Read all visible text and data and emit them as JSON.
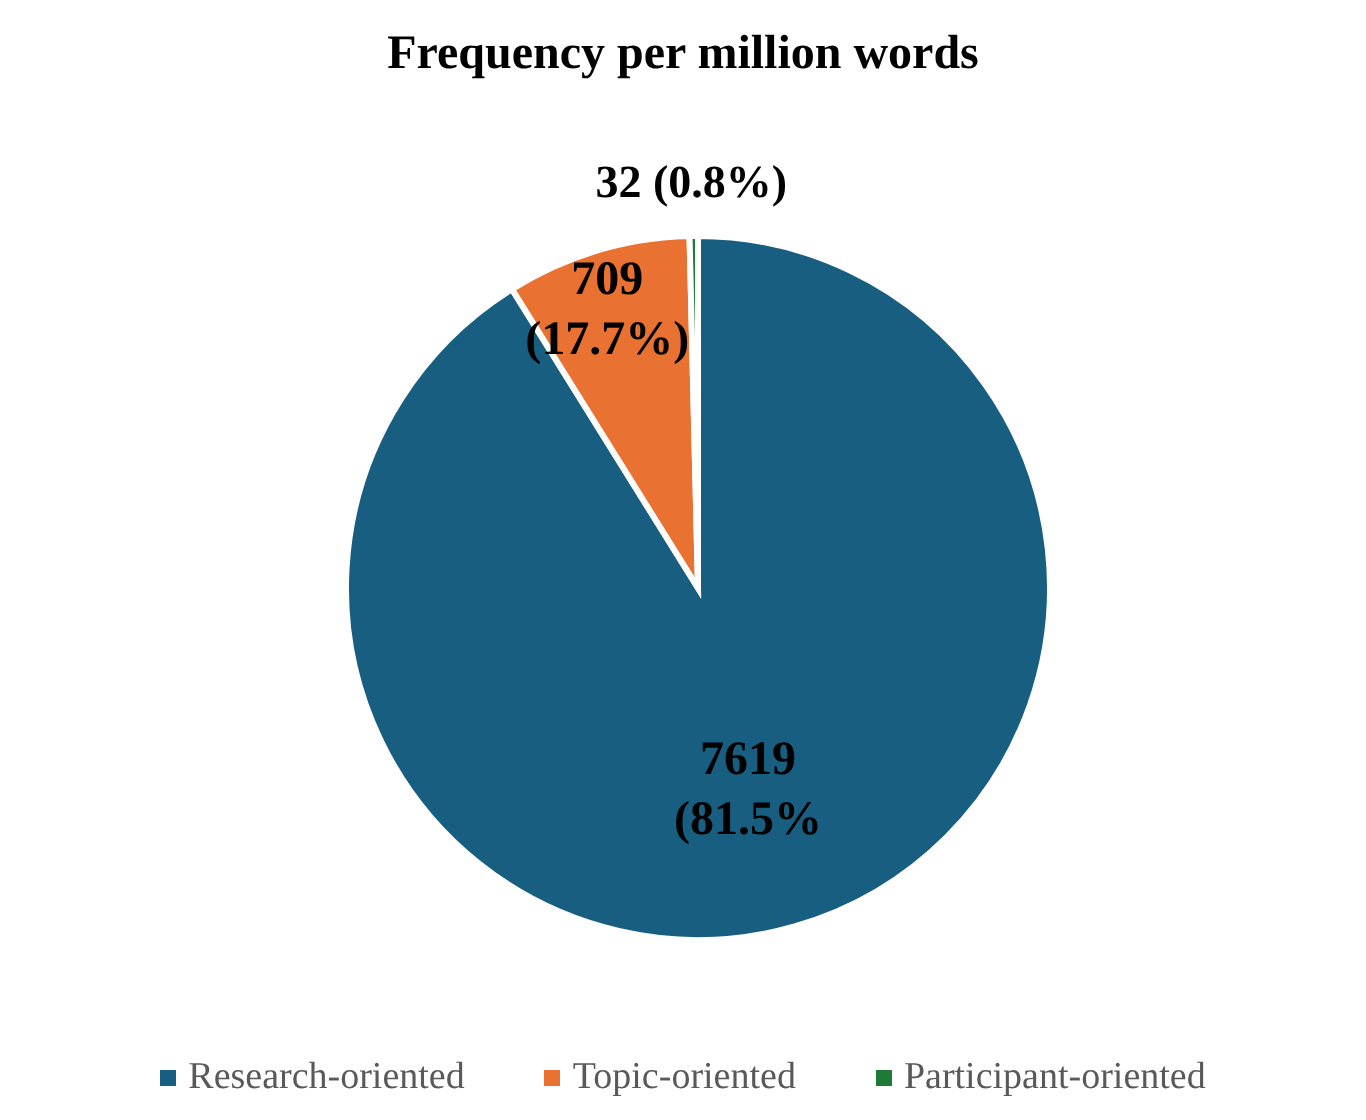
{
  "chart_data": {
    "type": "pie",
    "title": "Frequency per million words",
    "categories": [
      "Research-oriented",
      "Topic-oriented",
      "Participant-oriented"
    ],
    "values": [
      7619,
      709,
      32
    ],
    "colors": [
      "#185e80",
      "#e97132",
      "#1f7a35"
    ],
    "value_labels": [
      "7619 (81.5%",
      "709 (17.7%)",
      "32 (0.8%)"
    ],
    "legend": "bottom"
  }
}
